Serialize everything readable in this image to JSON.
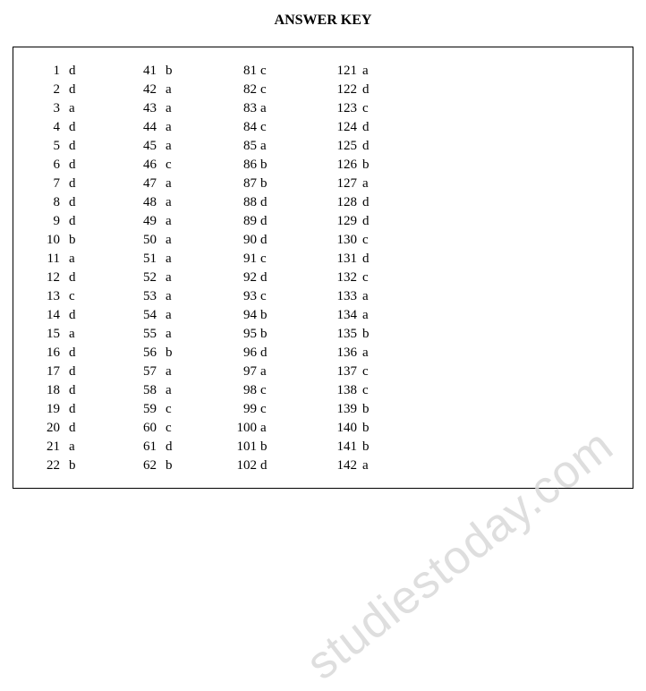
{
  "title": "ANSWER KEY",
  "watermark": "studiestoday.com",
  "columns": [
    [
      {
        "n": "1",
        "a": "d"
      },
      {
        "n": "2",
        "a": "d"
      },
      {
        "n": "3",
        "a": "a"
      },
      {
        "n": "4",
        "a": "d"
      },
      {
        "n": "5",
        "a": "d"
      },
      {
        "n": "6",
        "a": "d"
      },
      {
        "n": "7",
        "a": "d"
      },
      {
        "n": "8",
        "a": "d"
      },
      {
        "n": "9",
        "a": "d"
      },
      {
        "n": "10",
        "a": "b"
      },
      {
        "n": "11",
        "a": "a"
      },
      {
        "n": "12",
        "a": "d"
      },
      {
        "n": "13",
        "a": "c"
      },
      {
        "n": "14",
        "a": "d"
      },
      {
        "n": "15",
        "a": "a"
      },
      {
        "n": "16",
        "a": "d"
      },
      {
        "n": "17",
        "a": "d"
      },
      {
        "n": "18",
        "a": "d"
      },
      {
        "n": "19",
        "a": "d"
      },
      {
        "n": "20",
        "a": "d"
      },
      {
        "n": "21",
        "a": "a"
      },
      {
        "n": "22",
        "a": "b"
      }
    ],
    [
      {
        "n": "41",
        "a": "b"
      },
      {
        "n": "42",
        "a": "a"
      },
      {
        "n": "43",
        "a": "a"
      },
      {
        "n": "44",
        "a": "a"
      },
      {
        "n": "45",
        "a": "a"
      },
      {
        "n": "46",
        "a": "c"
      },
      {
        "n": "47",
        "a": "a"
      },
      {
        "n": "48",
        "a": "a"
      },
      {
        "n": "49",
        "a": "a"
      },
      {
        "n": "50",
        "a": "a"
      },
      {
        "n": "51",
        "a": "a"
      },
      {
        "n": "52",
        "a": "a"
      },
      {
        "n": "53",
        "a": "a"
      },
      {
        "n": "54",
        "a": "a"
      },
      {
        "n": "55",
        "a": "a"
      },
      {
        "n": "56",
        "a": "b"
      },
      {
        "n": "57",
        "a": "a"
      },
      {
        "n": "58",
        "a": "a"
      },
      {
        "n": "59",
        "a": "c"
      },
      {
        "n": "60",
        "a": "c"
      },
      {
        "n": "61",
        "a": "d"
      },
      {
        "n": "62",
        "a": "b"
      }
    ],
    [
      {
        "n": "81",
        "a": "c"
      },
      {
        "n": "82",
        "a": "c"
      },
      {
        "n": "83",
        "a": "a"
      },
      {
        "n": "84",
        "a": "c"
      },
      {
        "n": "85",
        "a": "a"
      },
      {
        "n": "86",
        "a": "b"
      },
      {
        "n": "87",
        "a": "b"
      },
      {
        "n": "88",
        "a": "d"
      },
      {
        "n": "89",
        "a": "d"
      },
      {
        "n": "90",
        "a": "d"
      },
      {
        "n": "91",
        "a": "c"
      },
      {
        "n": "92",
        "a": "d"
      },
      {
        "n": "93",
        "a": "c"
      },
      {
        "n": "94",
        "a": "b"
      },
      {
        "n": "95",
        "a": "b"
      },
      {
        "n": "96",
        "a": "d"
      },
      {
        "n": "97",
        "a": "a"
      },
      {
        "n": "98",
        "a": "c"
      },
      {
        "n": "99",
        "a": "c"
      },
      {
        "n": "100",
        "a": "a"
      },
      {
        "n": "101",
        "a": "b"
      },
      {
        "n": "102",
        "a": "d"
      }
    ],
    [
      {
        "n": "121",
        "a": "a"
      },
      {
        "n": "122",
        "a": "d"
      },
      {
        "n": "123",
        "a": "c"
      },
      {
        "n": "124",
        "a": "d"
      },
      {
        "n": "125",
        "a": "d"
      },
      {
        "n": "126",
        "a": "b"
      },
      {
        "n": "127",
        "a": "a"
      },
      {
        "n": "128",
        "a": "d"
      },
      {
        "n": "129",
        "a": "d"
      },
      {
        "n": "130",
        "a": "c"
      },
      {
        "n": "131",
        "a": "d"
      },
      {
        "n": "132",
        "a": "c"
      },
      {
        "n": "133",
        "a": "a"
      },
      {
        "n": "134",
        "a": "a"
      },
      {
        "n": "135",
        "a": "b"
      },
      {
        "n": "136",
        "a": "a"
      },
      {
        "n": "137",
        "a": "c"
      },
      {
        "n": "138",
        "a": "c"
      },
      {
        "n": "139",
        "a": "b"
      },
      {
        "n": "140",
        "a": "b"
      },
      {
        "n": "141",
        "a": "b"
      },
      {
        "n": "142",
        "a": "a"
      }
    ]
  ]
}
